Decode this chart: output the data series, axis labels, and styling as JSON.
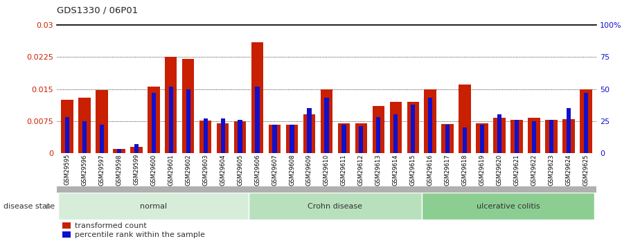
{
  "title": "GDS1330 / 06P01",
  "samples": [
    "GSM29595",
    "GSM29596",
    "GSM29597",
    "GSM29598",
    "GSM29599",
    "GSM29600",
    "GSM29601",
    "GSM29602",
    "GSM29603",
    "GSM29604",
    "GSM29605",
    "GSM29606",
    "GSM29607",
    "GSM29608",
    "GSM29609",
    "GSM29610",
    "GSM29611",
    "GSM29612",
    "GSM29613",
    "GSM29614",
    "GSM29615",
    "GSM29616",
    "GSM29617",
    "GSM29618",
    "GSM29619",
    "GSM29620",
    "GSM29621",
    "GSM29622",
    "GSM29623",
    "GSM29624",
    "GSM29625"
  ],
  "transformed_count": [
    0.0125,
    0.013,
    0.0147,
    0.001,
    0.0014,
    0.0155,
    0.0225,
    0.022,
    0.0076,
    0.007,
    0.0075,
    0.026,
    0.0066,
    0.0066,
    0.009,
    0.015,
    0.007,
    0.007,
    0.011,
    0.012,
    0.012,
    0.015,
    0.0068,
    0.016,
    0.007,
    0.0082,
    0.0078,
    0.0082,
    0.0078,
    0.008,
    0.015
  ],
  "percentile_rank": [
    28,
    25,
    22,
    3,
    7,
    47,
    52,
    50,
    27,
    27,
    26,
    52,
    22,
    22,
    35,
    43,
    22,
    21,
    28,
    30,
    38,
    43,
    22,
    20,
    22,
    30,
    26,
    25,
    26,
    35,
    47
  ],
  "groups": [
    {
      "label": "normal",
      "start": 0,
      "end": 10,
      "color": "#d6edd9"
    },
    {
      "label": "Crohn disease",
      "start": 11,
      "end": 20,
      "color": "#b8e0bc"
    },
    {
      "label": "ulcerative colitis",
      "start": 21,
      "end": 30,
      "color": "#8cce92"
    }
  ],
  "bar_color_red": "#c82000",
  "bar_color_blue": "#1010cc",
  "ylim_left": [
    0,
    0.03
  ],
  "ylim_right": [
    0,
    100
  ],
  "yticks_left": [
    0,
    0.0075,
    0.015,
    0.0225,
    0.03
  ],
  "yticks_right": [
    0,
    25,
    50,
    75,
    100
  ],
  "bar_width": 0.7,
  "blue_bar_width": 0.25,
  "disease_state_label": "disease state",
  "legend_labels": [
    "transformed count",
    "percentile rank within the sample"
  ]
}
